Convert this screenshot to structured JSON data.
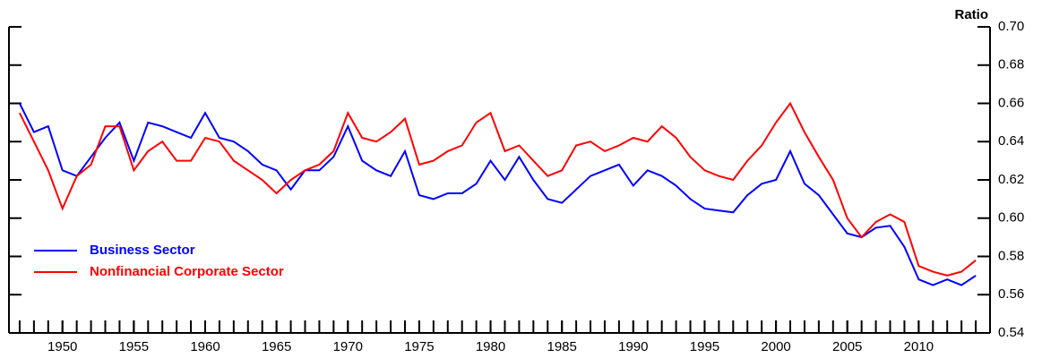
{
  "chart_data": {
    "type": "line",
    "y_label": "Ratio",
    "x": [
      1947,
      1948,
      1949,
      1950,
      1951,
      1952,
      1953,
      1954,
      1955,
      1956,
      1957,
      1958,
      1959,
      1960,
      1961,
      1962,
      1963,
      1964,
      1965,
      1966,
      1967,
      1968,
      1969,
      1970,
      1971,
      1972,
      1973,
      1974,
      1975,
      1976,
      1977,
      1978,
      1979,
      1980,
      1981,
      1982,
      1983,
      1984,
      1985,
      1986,
      1987,
      1988,
      1989,
      1990,
      1991,
      1992,
      1993,
      1994,
      1995,
      1996,
      1997,
      1998,
      1999,
      2000,
      2001,
      2002,
      2003,
      2004,
      2005,
      2006,
      2007,
      2008,
      2009,
      2010,
      2011,
      2012,
      2013,
      2014
    ],
    "series": [
      {
        "name": "Business Sector",
        "color": "#0000ff",
        "values": [
          0.66,
          0.645,
          0.648,
          0.625,
          0.622,
          0.632,
          0.642,
          0.65,
          0.63,
          0.65,
          0.648,
          0.645,
          0.642,
          0.655,
          0.642,
          0.64,
          0.635,
          0.628,
          0.625,
          0.615,
          0.625,
          0.625,
          0.632,
          0.648,
          0.63,
          0.625,
          0.622,
          0.635,
          0.612,
          0.61,
          0.613,
          0.613,
          0.618,
          0.63,
          0.62,
          0.632,
          0.62,
          0.61,
          0.608,
          0.615,
          0.622,
          0.625,
          0.628,
          0.617,
          0.625,
          0.622,
          0.617,
          0.61,
          0.605,
          0.604,
          0.603,
          0.612,
          0.618,
          0.62,
          0.635,
          0.618,
          0.612,
          0.602,
          0.592,
          0.59,
          0.595,
          0.596,
          0.585,
          0.568,
          0.565,
          0.568,
          0.565,
          0.57
        ]
      },
      {
        "name": "Nonfinancial Corporate Sector",
        "color": "#ff0000",
        "values": [
          0.655,
          0.64,
          0.625,
          0.605,
          0.622,
          0.628,
          0.648,
          0.648,
          0.625,
          0.635,
          0.64,
          0.63,
          0.63,
          0.642,
          0.64,
          0.63,
          0.625,
          0.62,
          0.613,
          0.62,
          0.625,
          0.628,
          0.635,
          0.655,
          0.642,
          0.64,
          0.645,
          0.652,
          0.628,
          0.63,
          0.635,
          0.638,
          0.65,
          0.655,
          0.635,
          0.638,
          0.63,
          0.622,
          0.625,
          0.638,
          0.64,
          0.635,
          0.638,
          0.642,
          0.64,
          0.648,
          0.642,
          0.632,
          0.625,
          0.622,
          0.62,
          0.63,
          0.638,
          0.65,
          0.66,
          0.645,
          0.632,
          0.62,
          0.6,
          0.59,
          0.598,
          0.602,
          0.598,
          0.575,
          0.572,
          0.57,
          0.572,
          0.578
        ]
      }
    ],
    "xlim": [
      1946.25,
      2015
    ],
    "xticks": [
      1950,
      1955,
      1960,
      1965,
      1970,
      1975,
      1980,
      1985,
      1990,
      1995,
      2000,
      2005,
      2010
    ],
    "ylim": [
      0.54,
      0.7
    ],
    "yticks": [
      {
        "value": 0.54,
        "label": "0.54"
      },
      {
        "value": 0.56,
        "label": "0.56"
      },
      {
        "value": 0.58,
        "label": "0.58"
      },
      {
        "value": 0.6,
        "label": "0.60"
      },
      {
        "value": 0.62,
        "label": "0.62"
      },
      {
        "value": 0.64,
        "label": "0.64"
      },
      {
        "value": 0.66,
        "label": "0.66"
      },
      {
        "value": 0.68,
        "label": "0.68"
      },
      {
        "value": 0.7,
        "label": "0.70"
      }
    ],
    "y_axis_side": "right",
    "legend": "lower-left"
  }
}
